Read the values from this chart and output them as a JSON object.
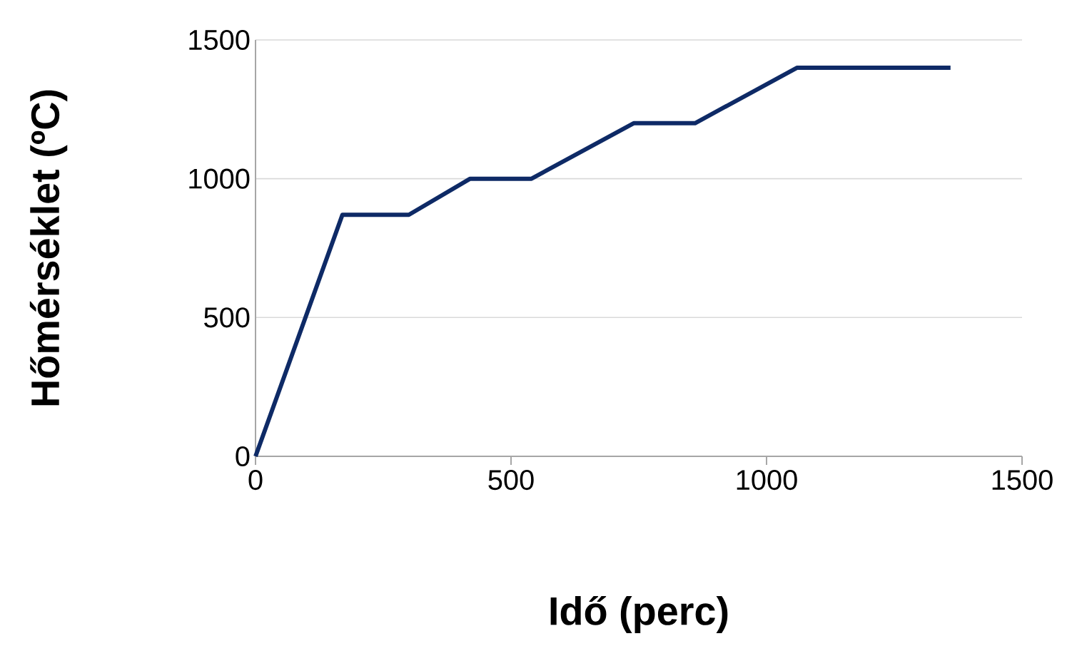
{
  "chart_data": {
    "type": "line",
    "xlabel": "Idő (perc)",
    "ylabel": "Hőmérséklet (ºC)",
    "x": [
      0,
      170,
      300,
      420,
      540,
      740,
      860,
      1060,
      1360
    ],
    "series": [
      {
        "color": "#0e2a66",
        "values": [
          0,
          870,
          870,
          1000,
          1000,
          1200,
          1200,
          1400,
          1400
        ]
      }
    ],
    "xlim": [
      0,
      1500
    ],
    "ylim": [
      0,
      1500
    ],
    "xticks": [
      0,
      500,
      1000,
      1500
    ],
    "yticks": [
      0,
      500,
      1000,
      1500
    ],
    "grid": "y",
    "marker": "none",
    "line_style": "solid"
  }
}
